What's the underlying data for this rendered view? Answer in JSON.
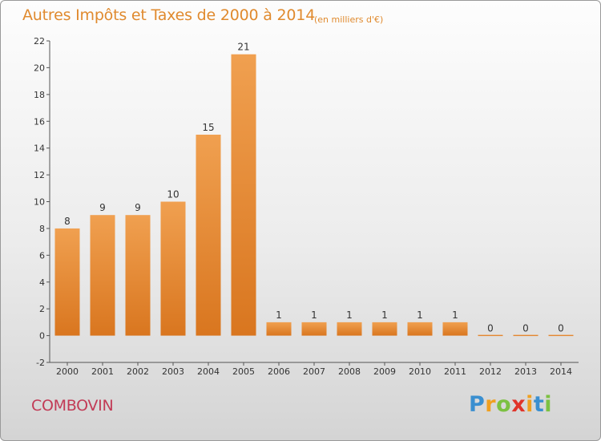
{
  "title": "Autres Impôts et Taxes de 2000 à 2014",
  "subtitle": "(en milliers d'€)",
  "commune": "COMBOVIN",
  "logo": {
    "text": "Proxiti",
    "letters": [
      "P",
      "r",
      "o",
      "x",
      "i",
      "t",
      "i"
    ],
    "colors": [
      "#3a8fd0",
      "#f0a020",
      "#7cc142",
      "#e0342a",
      "#f0a020",
      "#3a8fd0",
      "#7cc142"
    ]
  },
  "chart_data": {
    "type": "bar",
    "title": "Autres Impôts et Taxes de 2000 à 2014",
    "subtitle": "(en milliers d'€)",
    "categories": [
      "2000",
      "2001",
      "2002",
      "2003",
      "2004",
      "2005",
      "2006",
      "2007",
      "2008",
      "2009",
      "2010",
      "2011",
      "2012",
      "2013",
      "2014"
    ],
    "values": [
      8,
      9,
      9,
      10,
      15,
      21,
      1,
      1,
      1,
      1,
      1,
      1,
      0,
      0,
      0
    ],
    "data_labels": [
      "8",
      "9",
      "9",
      "10",
      "15",
      "21",
      "1",
      "1",
      "1",
      "1",
      "1",
      "1",
      "0",
      "0",
      "0"
    ],
    "ylim": [
      -2,
      22
    ],
    "yticks": [
      -2,
      0,
      2,
      4,
      6,
      8,
      10,
      12,
      14,
      16,
      18,
      20,
      22
    ],
    "grid": false,
    "bar_color": "#f0a050",
    "bar_color_dark": "#d9761f"
  }
}
